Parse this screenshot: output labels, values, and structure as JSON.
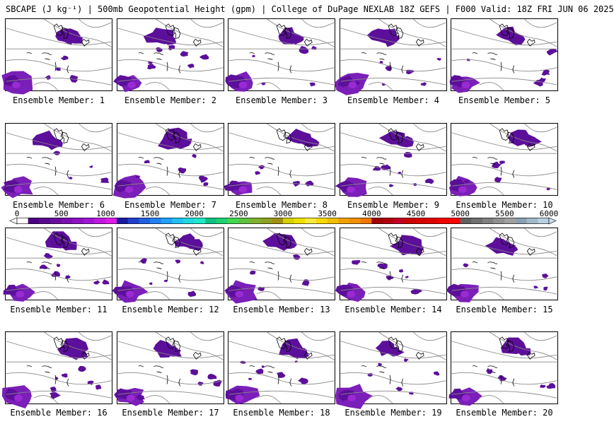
{
  "title": "SBCAPE (J kg⁻¹) | 500mb Geopotential Height (gpm) | College of DuPage NEXLAB 18Z GEFS | F000 Valid: 18Z FRI JUN 06 2025",
  "members": [
    {
      "label": "Ensemble Member: 1"
    },
    {
      "label": "Ensemble Member: 2"
    },
    {
      "label": "Ensemble Member: 3"
    },
    {
      "label": "Ensemble Member: 4"
    },
    {
      "label": "Ensemble Member: 5"
    },
    {
      "label": "Ensemble Member: 6"
    },
    {
      "label": "Ensemble Member: 7"
    },
    {
      "label": "Ensemble Member: 8"
    },
    {
      "label": "Ensemble Member: 9"
    },
    {
      "label": "Ensemble Member: 10"
    },
    {
      "label": "Ensemble Member: 11"
    },
    {
      "label": "Ensemble Member: 12"
    },
    {
      "label": "Ensemble Member: 13"
    },
    {
      "label": "Ensemble Member: 14"
    },
    {
      "label": "Ensemble Member: 15"
    },
    {
      "label": "Ensemble Member: 16"
    },
    {
      "label": "Ensemble Member: 17"
    },
    {
      "label": "Ensemble Member: 18"
    },
    {
      "label": "Ensemble Member: 19"
    },
    {
      "label": "Ensemble Member: 20"
    }
  ],
  "colorbar": {
    "ticks": [
      "0",
      "500",
      "1000",
      "1500",
      "2000",
      "2500",
      "3000",
      "3500",
      "4000",
      "4500",
      "5000",
      "5500",
      "6000"
    ],
    "colors": [
      "#ffffff",
      "#4b0082",
      "#5a0a8f",
      "#6a0d9e",
      "#7b10b0",
      "#8e12c2",
      "#a015d4",
      "#c018e0",
      "#e01ae8",
      "#1a1aa0",
      "#1f3fc8",
      "#2060e0",
      "#2080f0",
      "#20a0f8",
      "#20c0f0",
      "#20d8e0",
      "#20e8c8",
      "#10c080",
      "#20d070",
      "#40d850",
      "#60c040",
      "#80b030",
      "#90a020",
      "#a09010",
      "#d8d000",
      "#f0e000",
      "#f8e840",
      "#f8d800",
      "#f0c000",
      "#f0a000",
      "#f09000",
      "#f07800",
      "#a00000",
      "#b00010",
      "#c00020",
      "#c80000",
      "#d80000",
      "#e00000",
      "#f00000",
      "#ff0000",
      "#606060",
      "#707070",
      "#808080",
      "#909090",
      "#a0a0a0",
      "#8aa0b0",
      "#a0b8c8",
      "#b8d0e0"
    ],
    "color_low": "#ffffff",
    "color_high": "#c8e0ec"
  }
}
